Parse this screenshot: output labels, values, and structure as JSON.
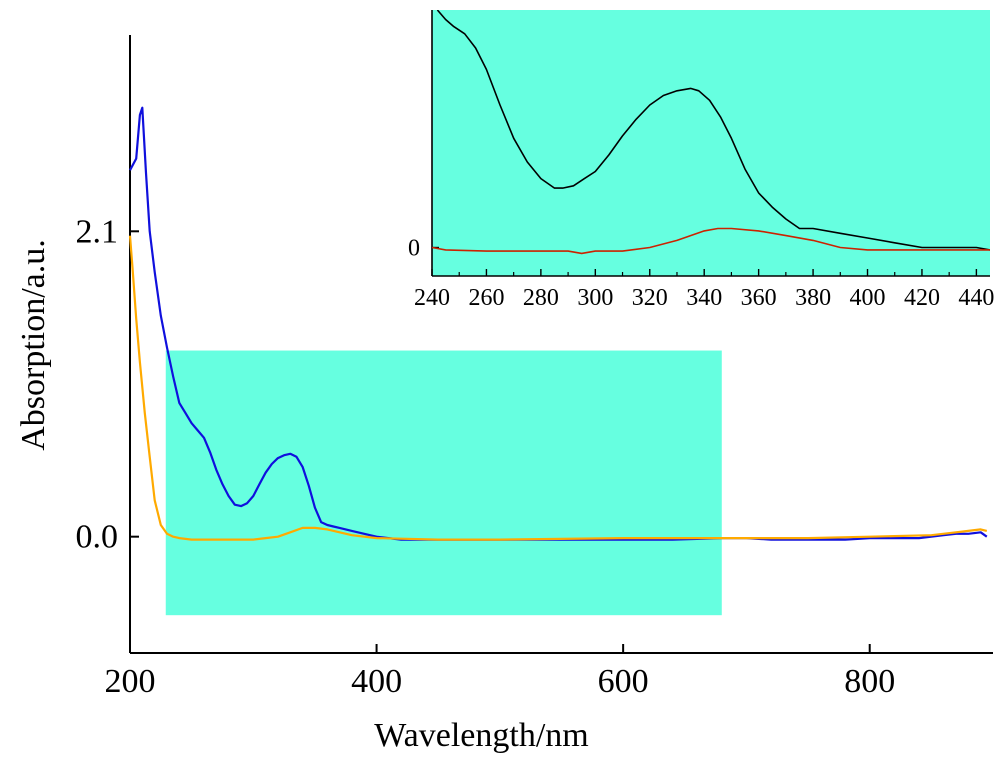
{
  "chart_data": [
    {
      "id": "main",
      "type": "line",
      "title": "",
      "xlabel": "Wavelength/nm",
      "ylabel": "Absorption/a.u.",
      "xlim": [
        200,
        900
      ],
      "ylim": [
        -0.8,
        3.45
      ],
      "xticks": [
        200,
        400,
        600,
        800
      ],
      "xtick_labels": [
        "200",
        "400",
        "600",
        "800"
      ],
      "yticks": [
        0.0,
        2.1
      ],
      "ytick_labels": [
        "0.0",
        "2.1"
      ],
      "grid": false,
      "legend": "none",
      "highlight_region": {
        "x": [
          229,
          680
        ],
        "y": [
          -0.54,
          1.28
        ],
        "color": "#66ffe0"
      },
      "series": [
        {
          "color": "#1010dd",
          "x": [
            200,
            205,
            208,
            210,
            213,
            216,
            220,
            225,
            230,
            235,
            240,
            245,
            250,
            255,
            260,
            265,
            270,
            275,
            280,
            285,
            290,
            295,
            300,
            305,
            310,
            315,
            320,
            325,
            330,
            335,
            340,
            345,
            350,
            355,
            360,
            365,
            370,
            380,
            390,
            400,
            420,
            440,
            480,
            520,
            560,
            600,
            640,
            680,
            700,
            720,
            750,
            780,
            800,
            820,
            840,
            860,
            870,
            880,
            890,
            895
          ],
          "y": [
            2.52,
            2.6,
            2.9,
            2.95,
            2.5,
            2.1,
            1.82,
            1.52,
            1.3,
            1.1,
            0.92,
            0.85,
            0.78,
            0.73,
            0.68,
            0.58,
            0.46,
            0.36,
            0.28,
            0.22,
            0.21,
            0.23,
            0.28,
            0.36,
            0.44,
            0.5,
            0.54,
            0.56,
            0.57,
            0.55,
            0.48,
            0.35,
            0.2,
            0.1,
            0.08,
            0.07,
            0.06,
            0.04,
            0.02,
            0.0,
            -0.02,
            -0.02,
            -0.02,
            -0.02,
            -0.02,
            -0.02,
            -0.02,
            -0.01,
            -0.01,
            -0.02,
            -0.02,
            -0.02,
            -0.01,
            -0.01,
            -0.01,
            0.01,
            0.02,
            0.02,
            0.03,
            0.0
          ]
        },
        {
          "color": "#ffaa00",
          "x": [
            200,
            202,
            205,
            208,
            212,
            216,
            220,
            225,
            230,
            235,
            240,
            250,
            260,
            280,
            300,
            310,
            320,
            330,
            340,
            350,
            360,
            370,
            380,
            400,
            450,
            500,
            600,
            700,
            750,
            800,
            850,
            870,
            880,
            890,
            895
          ],
          "y": [
            2.07,
            1.85,
            1.5,
            1.2,
            0.85,
            0.55,
            0.25,
            0.08,
            0.02,
            0.0,
            -0.01,
            -0.02,
            -0.02,
            -0.02,
            -0.02,
            -0.01,
            0.0,
            0.03,
            0.06,
            0.06,
            0.05,
            0.03,
            0.01,
            -0.01,
            -0.02,
            -0.02,
            -0.01,
            -0.01,
            -0.01,
            0.0,
            0.01,
            0.03,
            0.04,
            0.05,
            0.04
          ]
        }
      ]
    },
    {
      "id": "inset",
      "type": "line",
      "title": "",
      "xlabel": "",
      "ylabel": "",
      "xlim": [
        240,
        445
      ],
      "ylim": [
        -0.12,
        1.0
      ],
      "xticks": [
        240,
        260,
        280,
        300,
        320,
        340,
        360,
        380,
        400,
        420,
        440
      ],
      "xtick_labels": [
        "240",
        "260",
        "280",
        "300",
        "320",
        "340",
        "360",
        "380",
        "400",
        "420",
        "440"
      ],
      "yticks": [
        0
      ],
      "ytick_labels": [
        "0"
      ],
      "grid": false,
      "legend": "none",
      "background": "#66ffe0",
      "series": [
        {
          "color": "#000000",
          "x": [
            242,
            245,
            248,
            252,
            256,
            260,
            265,
            270,
            275,
            280,
            285,
            288,
            292,
            296,
            300,
            305,
            310,
            315,
            320,
            325,
            330,
            335,
            338,
            342,
            346,
            350,
            355,
            360,
            365,
            370,
            375,
            380,
            390,
            400,
            410,
            420,
            440,
            445
          ],
          "y": [
            1.0,
            0.96,
            0.93,
            0.9,
            0.84,
            0.75,
            0.6,
            0.46,
            0.36,
            0.29,
            0.25,
            0.25,
            0.26,
            0.29,
            0.32,
            0.39,
            0.47,
            0.54,
            0.6,
            0.64,
            0.66,
            0.67,
            0.66,
            0.62,
            0.55,
            0.46,
            0.33,
            0.23,
            0.17,
            0.12,
            0.08,
            0.08,
            0.06,
            0.04,
            0.02,
            0.0,
            0.0,
            -0.01
          ]
        },
        {
          "color": "#cc2200",
          "x": [
            240,
            245,
            260,
            280,
            290,
            295,
            300,
            310,
            320,
            330,
            335,
            340,
            345,
            350,
            360,
            370,
            380,
            390,
            400,
            445
          ],
          "y": [
            0.0,
            -0.01,
            -0.015,
            -0.015,
            -0.015,
            -0.025,
            -0.015,
            -0.015,
            0.0,
            0.03,
            0.05,
            0.07,
            0.08,
            0.08,
            0.07,
            0.05,
            0.03,
            0.0,
            -0.01,
            -0.01
          ]
        }
      ]
    }
  ]
}
